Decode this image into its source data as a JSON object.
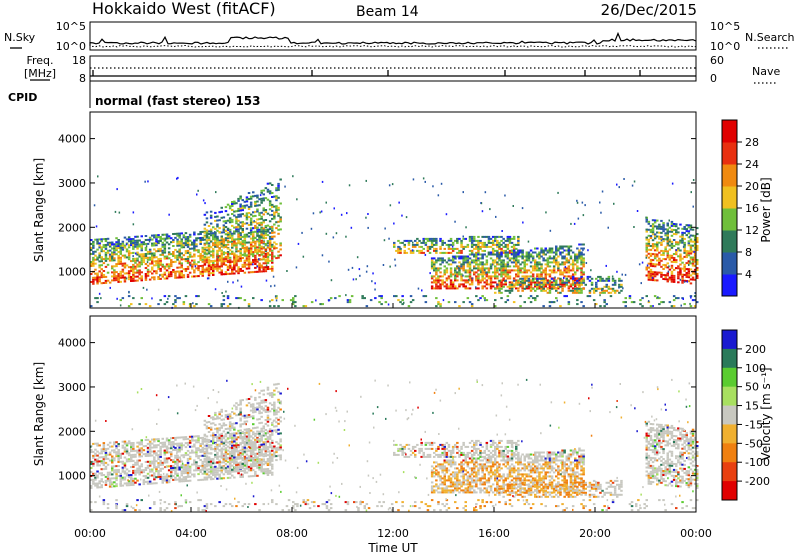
{
  "header": {
    "radar": "Hokkaido West (fitACF)",
    "beam": "Beam 14",
    "date": "26/Dec/2015"
  },
  "noise_panel": {
    "left_label": "N.Sky",
    "right_label": "N.Search",
    "ticks_left": [
      "10^5",
      "10^0"
    ],
    "ticks_right": [
      "10^5",
      "10^0"
    ]
  },
  "freq_panel": {
    "label_line1": "Freq.",
    "label_line2": "[MHz]",
    "ticks_left": [
      "18",
      "8"
    ],
    "ticks_right": [
      "60",
      "0"
    ],
    "right_label": "Nave"
  },
  "cpid": {
    "label": "CPID",
    "text": "normal (fast stereo) 153"
  },
  "chart_data": [
    {
      "type": "heatmap",
      "ylabel": "Slant Range [km]",
      "y_ticks": [
        "1000",
        "2000",
        "3000",
        "4000"
      ],
      "ylim": [
        180,
        4600
      ],
      "colorbar": {
        "label": "Power [dB]",
        "ticks": [
          "4",
          "8",
          "12",
          "16",
          "20",
          "24",
          "28"
        ],
        "colors": [
          "#1a1aff",
          "#2a5aa8",
          "#2f7a5a",
          "#6fbf3a",
          "#f0c020",
          "#f08a10",
          "#e83010",
          "#e00000"
        ]
      }
    },
    {
      "type": "heatmap",
      "ylabel": "Slant Range [km]",
      "y_ticks": [
        "1000",
        "2000",
        "3000",
        "4000"
      ],
      "ylim": [
        180,
        4600
      ],
      "xlabel": "Time UT",
      "x_ticks": [
        "00:00",
        "04:00",
        "08:00",
        "12:00",
        "16:00",
        "20:00",
        "00:00"
      ],
      "colorbar": {
        "label": "Velocity [m s⁻¹]",
        "ticks": [
          "200",
          "100",
          "50",
          "15",
          "-15",
          "-50",
          "-100",
          "-200"
        ],
        "colors": [
          "#1a1ad0",
          "#2a7a5a",
          "#5acc30",
          "#a8e060",
          "#c8c8c0",
          "#f0b030",
          "#f08010",
          "#e84010",
          "#e00000"
        ]
      }
    }
  ]
}
